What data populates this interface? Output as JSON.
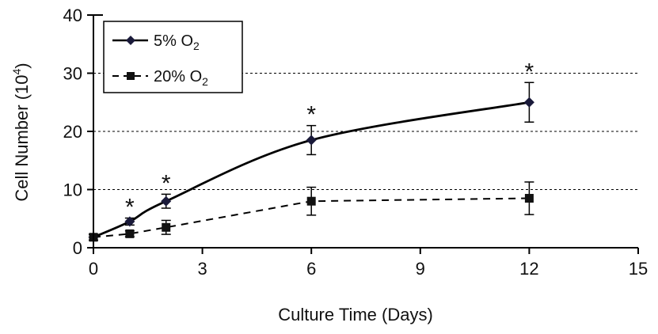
{
  "chart_data": {
    "type": "line",
    "xlabel": "Culture Time (Days)",
    "ylabel_main": "Cell Number (10",
    "ylabel_sup": "4",
    "ylabel_tail": ")",
    "xlim": [
      0,
      15
    ],
    "ylim": [
      0,
      40
    ],
    "x_ticks": [
      0,
      3,
      6,
      9,
      12,
      15
    ],
    "x_tick_labels": [
      "0",
      "3",
      "6",
      "9",
      "12",
      "15"
    ],
    "y_ticks": [
      0,
      10,
      20,
      30,
      40
    ],
    "y_tick_labels": [
      "0",
      "10",
      "20",
      "30",
      "40"
    ],
    "grid": "horizontal dashed at 10, 20, 30",
    "legend_position": "top-left",
    "significance_marker": "*",
    "significance_x": [
      1,
      2,
      6,
      12
    ],
    "series": [
      {
        "name_main": "5% O",
        "name_sub": "2",
        "marker": "diamond",
        "line_style": "solid",
        "color": "#000000",
        "marker_color": "#1a1a3a",
        "x": [
          0,
          1,
          2,
          6,
          12
        ],
        "y": [
          1.8,
          4.5,
          8.0,
          18.5,
          25.0
        ],
        "err": [
          0.5,
          0.6,
          1.2,
          2.5,
          3.4
        ]
      },
      {
        "name_main": "20% O",
        "name_sub": "2",
        "marker": "square",
        "line_style": "dashed",
        "color": "#000000",
        "marker_color": "#111111",
        "x": [
          0,
          1,
          2,
          6,
          12
        ],
        "y": [
          1.8,
          2.4,
          3.5,
          8.0,
          8.5
        ],
        "err": [
          0.5,
          0.5,
          1.2,
          2.4,
          2.8
        ]
      }
    ]
  }
}
